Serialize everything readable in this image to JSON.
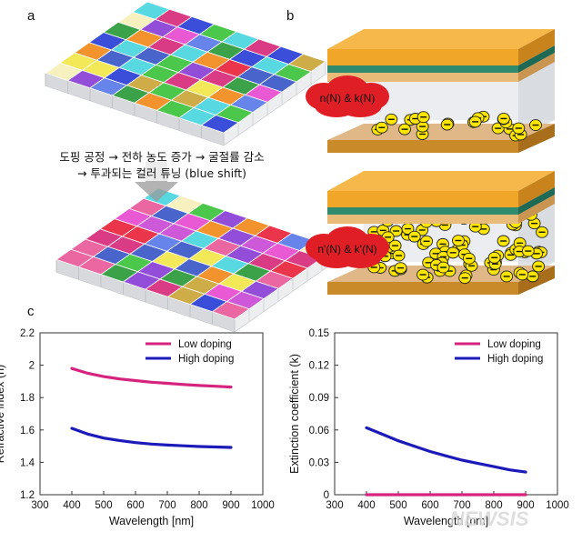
{
  "panels": {
    "a": "a",
    "b": "b",
    "c": "c"
  },
  "caption_line1": "도핑 공정 → 전하 농도 증가 → 굴절률 감소",
  "caption_line2": "→ 투과되는 컬러 튜닝 (blue shift)",
  "blob_top": "n(N) & k(N)",
  "blob_bottom": "n'(N) & k'(N)",
  "watermark": "NEWSIS",
  "colors": {
    "low": "#d6237e",
    "high": "#1c1ab8",
    "gold": "#f0a628",
    "teal": "#2f8a6e",
    "electron": "#ffe600"
  },
  "chart_data": [
    {
      "type": "line",
      "ylabel": "Refractive index (n)",
      "xlabel": "Wavelength [nm]",
      "xlim": [
        300,
        1000
      ],
      "ylim": [
        1.2,
        2.2
      ],
      "xticks": [
        "300",
        "400",
        "500",
        "600",
        "700",
        "800",
        "900",
        "1000"
      ],
      "yticks": [
        "1.2",
        "1.4",
        "1.6",
        "1.8",
        "2",
        "2.2"
      ],
      "legend_position": "top-right",
      "series": [
        {
          "name": "Low doping",
          "x": [
            400,
            450,
            500,
            550,
            600,
            650,
            700,
            750,
            800,
            850,
            900
          ],
          "y": [
            1.98,
            1.95,
            1.93,
            1.915,
            1.905,
            1.895,
            1.888,
            1.881,
            1.875,
            1.87,
            1.865
          ]
        },
        {
          "name": "High doping",
          "x": [
            400,
            450,
            500,
            550,
            600,
            650,
            700,
            750,
            800,
            850,
            900
          ],
          "y": [
            1.61,
            1.575,
            1.55,
            1.535,
            1.522,
            1.513,
            1.507,
            1.502,
            1.498,
            1.495,
            1.492
          ]
        }
      ]
    },
    {
      "type": "line",
      "ylabel": "Extinction coefficient (k)",
      "xlabel": "Wavelength [nm]",
      "xlim": [
        300,
        1000
      ],
      "ylim": [
        0,
        0.15
      ],
      "xticks": [
        "300",
        "400",
        "500",
        "600",
        "700",
        "800",
        "900",
        "1000"
      ],
      "yticks": [
        "0",
        "0.03",
        "0.06",
        "0.09",
        "0.12",
        "0.15"
      ],
      "legend_position": "top-right",
      "series": [
        {
          "name": "Low doping",
          "x": [
            400,
            450,
            500,
            550,
            600,
            650,
            700,
            750,
            800,
            850,
            900
          ],
          "y": [
            0,
            0,
            0,
            0,
            0,
            0,
            0,
            0,
            0,
            0,
            0
          ]
        },
        {
          "name": "High doping",
          "x": [
            400,
            450,
            500,
            550,
            600,
            650,
            700,
            750,
            800,
            850,
            900
          ],
          "y": [
            0.062,
            0.056,
            0.05,
            0.045,
            0.04,
            0.036,
            0.032,
            0.029,
            0.026,
            0.023,
            0.021
          ]
        }
      ]
    }
  ]
}
